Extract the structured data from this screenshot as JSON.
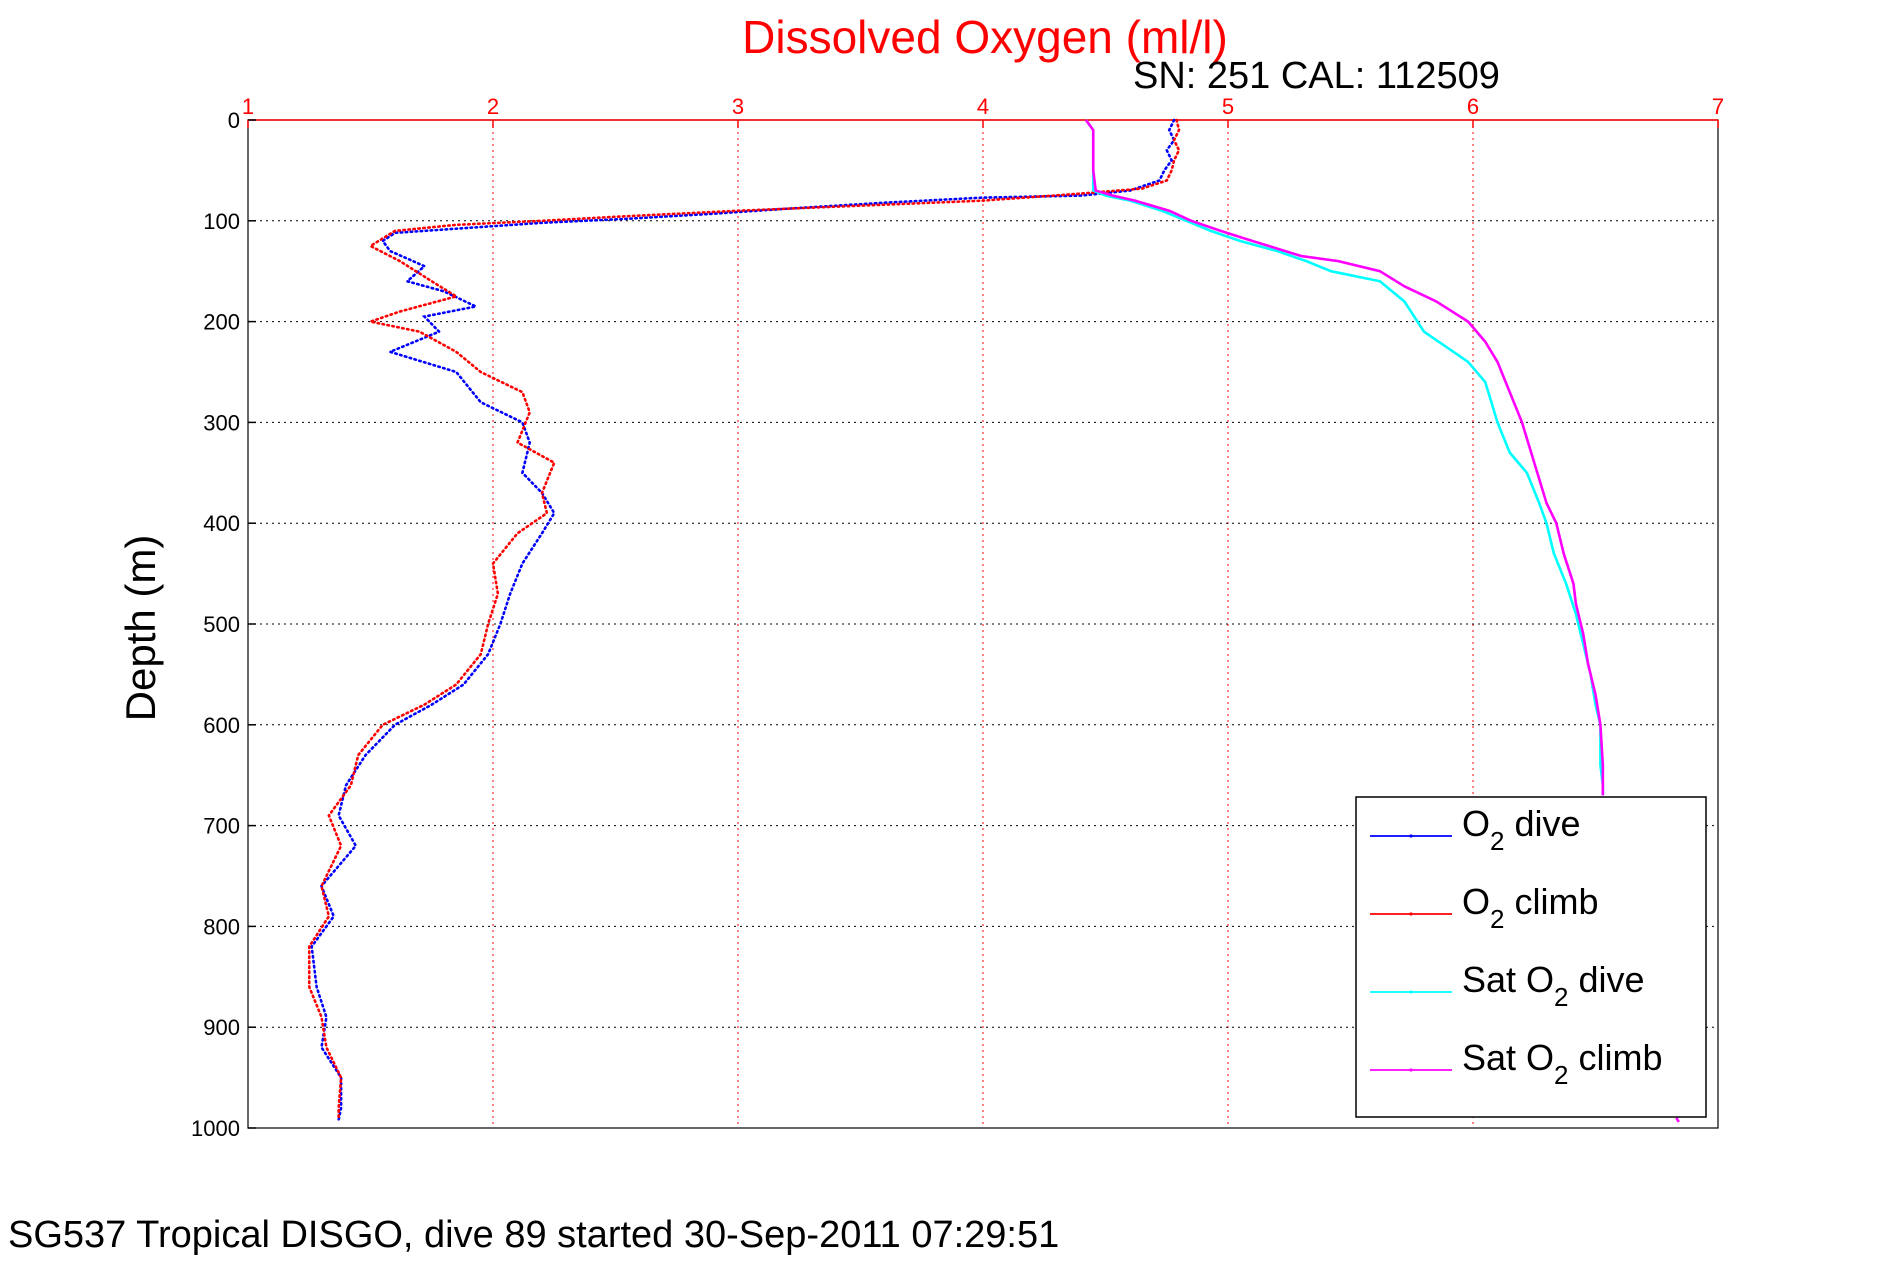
{
  "chart_data": {
    "type": "line",
    "title": "Dissolved Oxygen (ml/l)",
    "subtitle": "SN: 251  CAL: 112509",
    "xlabel": "",
    "ylabel": "Depth (m)",
    "xlim": [
      1,
      7
    ],
    "ylim": [
      0,
      1000
    ],
    "y_reversed": true,
    "x_axis_position": "top",
    "x_ticks": [
      "1",
      "2",
      "3",
      "4",
      "5",
      "6",
      "7"
    ],
    "y_ticks": [
      "0",
      "100",
      "200",
      "300",
      "400",
      "500",
      "600",
      "700",
      "800",
      "900",
      "1000"
    ],
    "grid": true,
    "legend_position": "bottom-right",
    "caption": "SG537 Tropical DISGO, dive 89 started 30-Sep-2011 07:29:51",
    "series": [
      {
        "name": "O2 dive",
        "legend_main": "O",
        "legend_sub": "2",
        "legend_tail": " dive",
        "color": "#0000ff",
        "marker": "dot",
        "points": [
          [
            4.78,
            0
          ],
          [
            4.76,
            10
          ],
          [
            4.78,
            20
          ],
          [
            4.75,
            30
          ],
          [
            4.77,
            40
          ],
          [
            4.74,
            50
          ],
          [
            4.72,
            60
          ],
          [
            4.6,
            70
          ],
          [
            4.4,
            75
          ],
          [
            4.0,
            77
          ],
          [
            3.6,
            82
          ],
          [
            3.2,
            88
          ],
          [
            2.9,
            93
          ],
          [
            2.55,
            98
          ],
          [
            2.2,
            102
          ],
          [
            1.9,
            107
          ],
          [
            1.6,
            112
          ],
          [
            1.55,
            120
          ],
          [
            1.58,
            130
          ],
          [
            1.72,
            145
          ],
          [
            1.65,
            160
          ],
          [
            1.8,
            170
          ],
          [
            1.93,
            185
          ],
          [
            1.72,
            195
          ],
          [
            1.78,
            210
          ],
          [
            1.58,
            230
          ],
          [
            1.85,
            250
          ],
          [
            1.9,
            265
          ],
          [
            1.95,
            280
          ],
          [
            2.12,
            300
          ],
          [
            2.15,
            320
          ],
          [
            2.12,
            350
          ],
          [
            2.2,
            370
          ],
          [
            2.25,
            390
          ],
          [
            2.2,
            410
          ],
          [
            2.12,
            440
          ],
          [
            2.07,
            470
          ],
          [
            2.03,
            500
          ],
          [
            1.98,
            530
          ],
          [
            1.88,
            560
          ],
          [
            1.75,
            580
          ],
          [
            1.6,
            600
          ],
          [
            1.48,
            630
          ],
          [
            1.4,
            660
          ],
          [
            1.37,
            690
          ],
          [
            1.44,
            720
          ],
          [
            1.3,
            760
          ],
          [
            1.35,
            790
          ],
          [
            1.26,
            820
          ],
          [
            1.28,
            860
          ],
          [
            1.32,
            890
          ],
          [
            1.3,
            920
          ],
          [
            1.38,
            950
          ],
          [
            1.38,
            980
          ],
          [
            1.37,
            992
          ]
        ]
      },
      {
        "name": "O2 climb",
        "legend_main": "O",
        "legend_sub": "2",
        "legend_tail": " climb",
        "color": "#ff0000",
        "marker": "dot",
        "points": [
          [
            4.79,
            0
          ],
          [
            4.8,
            10
          ],
          [
            4.78,
            20
          ],
          [
            4.8,
            30
          ],
          [
            4.78,
            40
          ],
          [
            4.77,
            50
          ],
          [
            4.75,
            60
          ],
          [
            4.65,
            68
          ],
          [
            4.4,
            73
          ],
          [
            4.0,
            80
          ],
          [
            3.5,
            85
          ],
          [
            3.0,
            90
          ],
          [
            2.5,
            96
          ],
          [
            2.2,
            100
          ],
          [
            1.85,
            104
          ],
          [
            1.6,
            110
          ],
          [
            1.5,
            125
          ],
          [
            1.62,
            140
          ],
          [
            1.75,
            160
          ],
          [
            1.85,
            175
          ],
          [
            1.62,
            190
          ],
          [
            1.5,
            200
          ],
          [
            1.7,
            210
          ],
          [
            1.85,
            230
          ],
          [
            1.95,
            250
          ],
          [
            2.12,
            270
          ],
          [
            2.15,
            290
          ],
          [
            2.1,
            320
          ],
          [
            2.25,
            340
          ],
          [
            2.2,
            370
          ],
          [
            2.22,
            390
          ],
          [
            2.1,
            410
          ],
          [
            2.0,
            440
          ],
          [
            2.02,
            470
          ],
          [
            1.98,
            500
          ],
          [
            1.95,
            530
          ],
          [
            1.85,
            560
          ],
          [
            1.72,
            580
          ],
          [
            1.55,
            600
          ],
          [
            1.45,
            630
          ],
          [
            1.42,
            660
          ],
          [
            1.33,
            690
          ],
          [
            1.38,
            720
          ],
          [
            1.3,
            760
          ],
          [
            1.33,
            790
          ],
          [
            1.25,
            820
          ],
          [
            1.25,
            860
          ],
          [
            1.3,
            890
          ],
          [
            1.32,
            920
          ],
          [
            1.38,
            950
          ],
          [
            1.37,
            980
          ],
          [
            1.37,
            990
          ]
        ]
      },
      {
        "name": "Sat O2 dive",
        "legend_main": "Sat O",
        "legend_sub": "2",
        "legend_tail": " dive",
        "color": "#00ffff",
        "marker": "line",
        "points": [
          [
            4.42,
            0
          ],
          [
            4.45,
            10
          ],
          [
            4.45,
            30
          ],
          [
            4.45,
            50
          ],
          [
            4.45,
            70
          ],
          [
            4.5,
            75
          ],
          [
            4.6,
            80
          ],
          [
            4.73,
            90
          ],
          [
            4.83,
            100
          ],
          [
            4.93,
            110
          ],
          [
            5.05,
            120
          ],
          [
            5.2,
            130
          ],
          [
            5.32,
            140
          ],
          [
            5.42,
            150
          ],
          [
            5.62,
            160
          ],
          [
            5.72,
            180
          ],
          [
            5.8,
            210
          ],
          [
            5.92,
            230
          ],
          [
            5.98,
            240
          ],
          [
            6.05,
            260
          ],
          [
            6.1,
            300
          ],
          [
            6.15,
            330
          ],
          [
            6.22,
            350
          ],
          [
            6.27,
            380
          ],
          [
            6.3,
            400
          ],
          [
            6.33,
            430
          ],
          [
            6.38,
            460
          ],
          [
            6.42,
            490
          ],
          [
            6.45,
            520
          ],
          [
            6.48,
            550
          ],
          [
            6.5,
            580
          ],
          [
            6.52,
            600
          ],
          [
            6.52,
            640
          ],
          [
            6.53,
            660
          ],
          [
            6.53,
            670
          ]
        ]
      },
      {
        "name": "Sat O2 climb",
        "legend_main": "Sat O",
        "legend_sub": "2",
        "legend_tail": " climb",
        "color": "#ff00ff",
        "marker": "line",
        "points": [
          [
            4.42,
            0
          ],
          [
            4.45,
            10
          ],
          [
            4.45,
            30
          ],
          [
            4.45,
            50
          ],
          [
            4.46,
            70
          ],
          [
            4.53,
            75
          ],
          [
            4.62,
            80
          ],
          [
            4.76,
            90
          ],
          [
            4.85,
            100
          ],
          [
            4.97,
            110
          ],
          [
            5.1,
            120
          ],
          [
            5.3,
            135
          ],
          [
            5.45,
            140
          ],
          [
            5.62,
            150
          ],
          [
            5.72,
            165
          ],
          [
            5.85,
            180
          ],
          [
            5.98,
            200
          ],
          [
            6.05,
            220
          ],
          [
            6.1,
            240
          ],
          [
            6.15,
            270
          ],
          [
            6.2,
            300
          ],
          [
            6.25,
            340
          ],
          [
            6.3,
            380
          ],
          [
            6.34,
            400
          ],
          [
            6.37,
            430
          ],
          [
            6.41,
            460
          ],
          [
            6.42,
            480
          ],
          [
            6.45,
            510
          ],
          [
            6.47,
            540
          ],
          [
            6.5,
            570
          ],
          [
            6.52,
            600
          ],
          [
            6.53,
            640
          ],
          [
            6.53,
            670
          ]
        ]
      }
    ],
    "tail_points": [
      [
        6.83,
        990
      ],
      [
        6.84,
        994
      ]
    ]
  }
}
